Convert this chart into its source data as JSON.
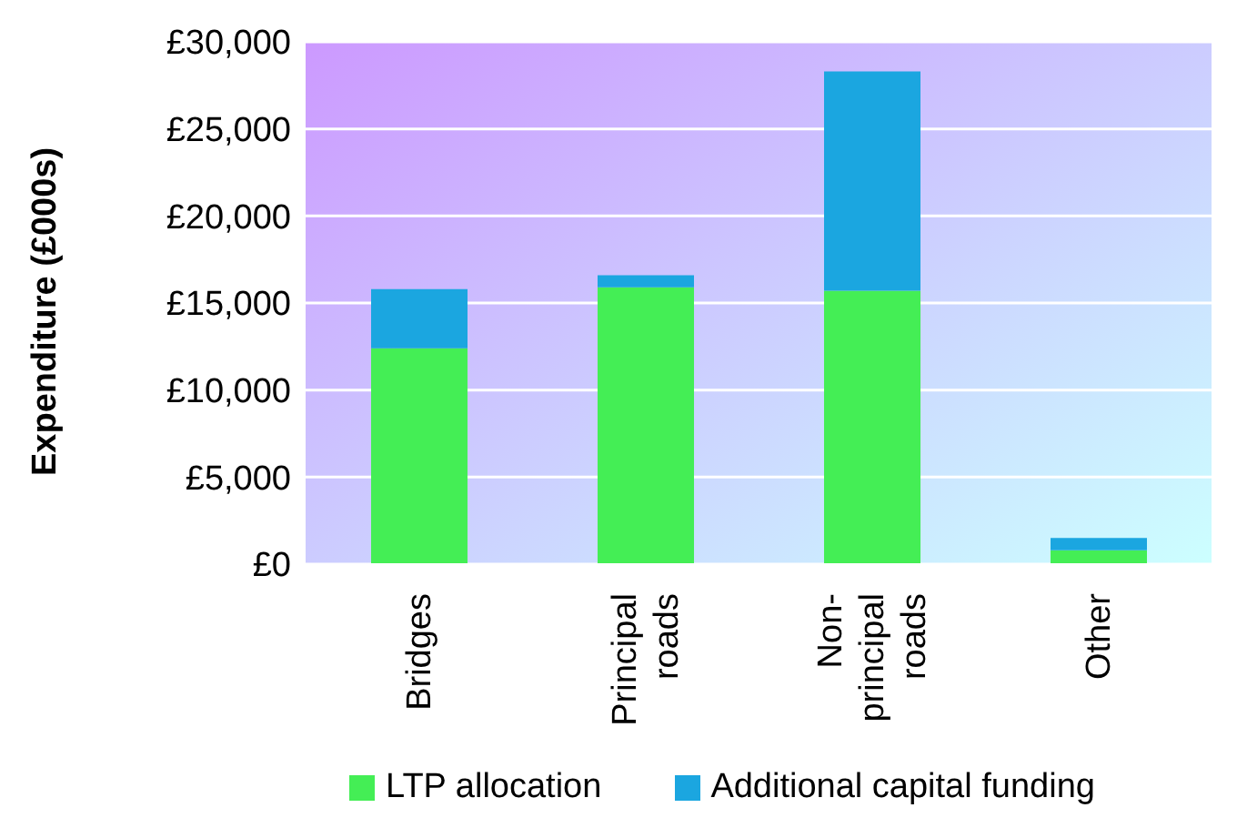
{
  "chart_data": {
    "type": "bar",
    "stacked": true,
    "ylabel": "Expenditure (£000s)",
    "categories": [
      "Bridges",
      "Principal roads",
      "Non-principal roads",
      "Other"
    ],
    "series": [
      {
        "name": "LTP allocation",
        "color": "#44ee55",
        "values": [
          12400,
          15900,
          15700,
          800
        ]
      },
      {
        "name": "Additional capital funding",
        "color": "#1ba6e0",
        "values": [
          3400,
          700,
          12600,
          700
        ]
      }
    ],
    "ylim": [
      0,
      30000
    ],
    "yticks": [
      {
        "value": 0,
        "label": "£0"
      },
      {
        "value": 5000,
        "label": "£5,000"
      },
      {
        "value": 10000,
        "label": "£10,000"
      },
      {
        "value": 15000,
        "label": "£15,000"
      },
      {
        "value": 20000,
        "label": "£20,000"
      },
      {
        "value": 25000,
        "label": "£25,000"
      },
      {
        "value": 30000,
        "label": "£30,000"
      }
    ],
    "grid": "y",
    "legend": "bottom"
  }
}
